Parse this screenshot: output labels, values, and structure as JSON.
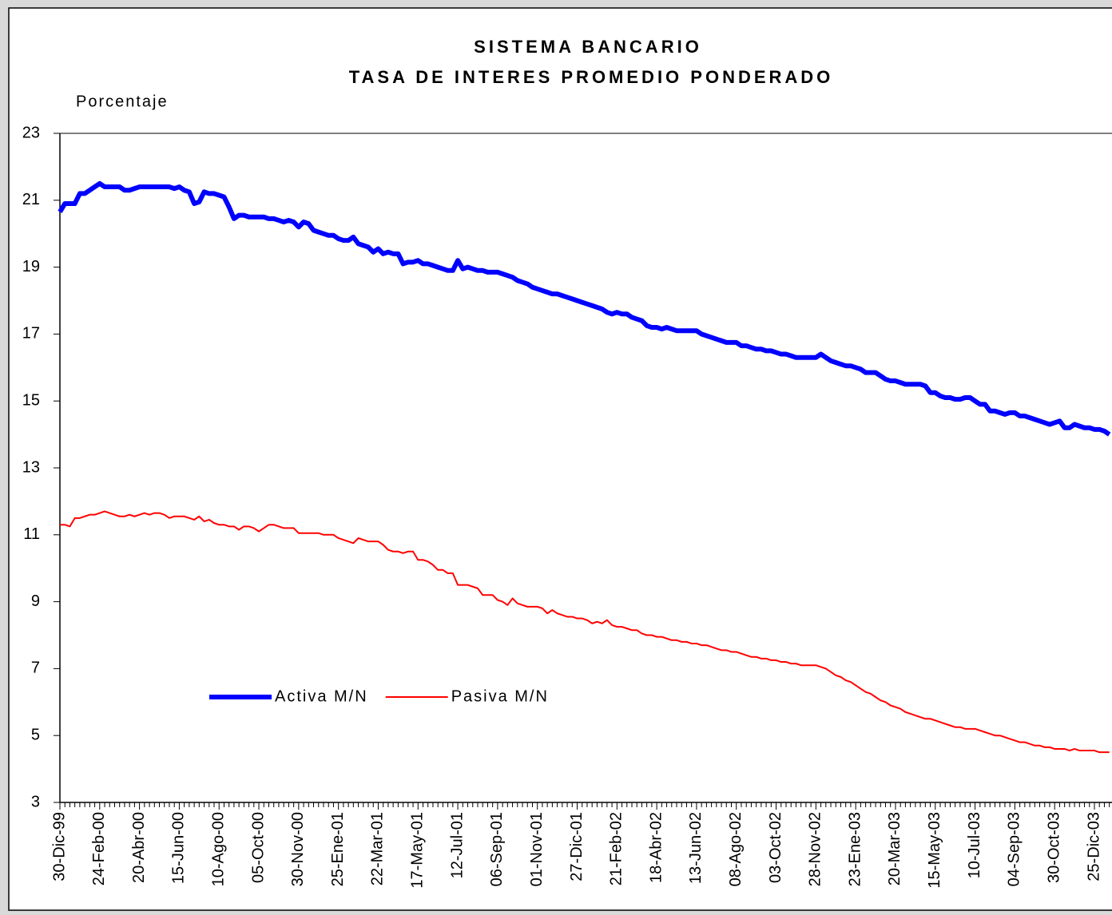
{
  "chart_data": {
    "type": "line",
    "title": "SISTEMA BANCARIO",
    "subtitle": "TASA DE INTERES PROMEDIO PONDERADO",
    "y_label": "Porcentaje",
    "ylim": [
      3,
      23
    ],
    "yticks": [
      3,
      5,
      7,
      9,
      11,
      13,
      15,
      17,
      19,
      21,
      23
    ],
    "grid": false,
    "legend": "center-left",
    "categories": [
      "30-Dic-99",
      null,
      null,
      null,
      null,
      null,
      null,
      null,
      "24-Feb-00",
      null,
      null,
      null,
      null,
      null,
      null,
      null,
      "20-Abr-00",
      null,
      null,
      null,
      null,
      null,
      null,
      null,
      "15-Jun-00",
      null,
      null,
      null,
      null,
      null,
      null,
      null,
      "10-Ago-00",
      null,
      null,
      null,
      null,
      null,
      null,
      null,
      "05-Oct-00",
      null,
      null,
      null,
      null,
      null,
      null,
      null,
      "30-Nov-00",
      null,
      null,
      null,
      null,
      null,
      null,
      null,
      "25-Ene-01",
      null,
      null,
      null,
      null,
      null,
      null,
      null,
      "22-Mar-01",
      null,
      null,
      null,
      null,
      null,
      null,
      null,
      "17-May-01",
      null,
      null,
      null,
      null,
      null,
      null,
      null,
      "12-Jul-01",
      null,
      null,
      null,
      null,
      null,
      null,
      null,
      "06-Sep-01",
      null,
      null,
      null,
      null,
      null,
      null,
      null,
      "01-Nov-01",
      null,
      null,
      null,
      null,
      null,
      null,
      null,
      "27-Dic-01",
      null,
      null,
      null,
      null,
      null,
      null,
      null,
      "21-Feb-02",
      null,
      null,
      null,
      null,
      null,
      null,
      null,
      "18-Abr-02",
      null,
      null,
      null,
      null,
      null,
      null,
      null,
      "13-Jun-02",
      null,
      null,
      null,
      null,
      null,
      null,
      null,
      "08-Ago-02",
      null,
      null,
      null,
      null,
      null,
      null,
      null,
      "03-Oct-02",
      null,
      null,
      null,
      null,
      null,
      null,
      null,
      "28-Nov-02",
      null,
      null,
      null,
      null,
      null,
      null,
      null,
      "23-Ene-03",
      null,
      null,
      null,
      null,
      null,
      null,
      null,
      "20-Mar-03",
      null,
      null,
      null,
      null,
      null,
      null,
      null,
      "15-May-03",
      null,
      null,
      null,
      null,
      null,
      null,
      null,
      "10-Jul-03",
      null,
      null,
      null,
      null,
      null,
      null,
      null,
      "04-Sep-03",
      null,
      null,
      null,
      null,
      null,
      null,
      null,
      "30-Oct-03",
      null,
      null,
      null,
      null,
      null,
      null,
      null,
      "25-Dic-03",
      null,
      null,
      null
    ],
    "series": [
      {
        "name": "Activa M/N",
        "color": "#0000ff",
        "values": [
          20.65,
          20.9,
          20.9,
          20.9,
          21.2,
          21.2,
          21.3,
          21.4,
          21.5,
          21.4,
          21.4,
          21.4,
          21.4,
          21.3,
          21.3,
          21.35,
          21.4,
          21.4,
          21.4,
          21.4,
          21.4,
          21.4,
          21.4,
          21.35,
          21.4,
          21.3,
          21.25,
          20.9,
          20.95,
          21.25,
          21.2,
          21.2,
          21.15,
          21.1,
          20.8,
          20.45,
          20.55,
          20.55,
          20.5,
          20.5,
          20.5,
          20.5,
          20.45,
          20.45,
          20.4,
          20.35,
          20.4,
          20.35,
          20.2,
          20.35,
          20.3,
          20.1,
          20.05,
          20.0,
          19.95,
          19.95,
          19.85,
          19.8,
          19.8,
          19.9,
          19.7,
          19.65,
          19.6,
          19.45,
          19.55,
          19.4,
          19.45,
          19.4,
          19.4,
          19.1,
          19.15,
          19.15,
          19.2,
          19.1,
          19.1,
          19.05,
          19.0,
          18.95,
          18.9,
          18.9,
          19.2,
          18.95,
          19.0,
          18.95,
          18.9,
          18.9,
          18.85,
          18.85,
          18.85,
          18.8,
          18.75,
          18.7,
          18.6,
          18.55,
          18.5,
          18.4,
          18.35,
          18.3,
          18.25,
          18.2,
          18.2,
          18.15,
          18.1,
          18.05,
          18.0,
          17.95,
          17.9,
          17.85,
          17.8,
          17.75,
          17.65,
          17.6,
          17.65,
          17.6,
          17.6,
          17.5,
          17.45,
          17.4,
          17.25,
          17.2,
          17.2,
          17.15,
          17.2,
          17.15,
          17.1,
          17.1,
          17.1,
          17.1,
          17.1,
          17.0,
          16.95,
          16.9,
          16.85,
          16.8,
          16.75,
          16.75,
          16.75,
          16.65,
          16.65,
          16.6,
          16.55,
          16.55,
          16.5,
          16.5,
          16.45,
          16.4,
          16.4,
          16.35,
          16.3,
          16.3,
          16.3,
          16.3,
          16.3,
          16.4,
          16.3,
          16.2,
          16.15,
          16.1,
          16.05,
          16.05,
          16.0,
          15.95,
          15.85,
          15.85,
          15.85,
          15.75,
          15.65,
          15.6,
          15.6,
          15.55,
          15.5,
          15.5,
          15.5,
          15.5,
          15.45,
          15.25,
          15.25,
          15.15,
          15.1,
          15.1,
          15.05,
          15.05,
          15.1,
          15.1,
          15.0,
          14.9,
          14.9,
          14.7,
          14.7,
          14.65,
          14.6,
          14.65,
          14.65,
          14.55,
          14.55,
          14.5,
          14.45,
          14.4,
          14.35,
          14.3,
          14.35,
          14.4,
          14.2,
          14.2,
          14.3,
          14.25,
          14.2,
          14.2,
          14.15,
          14.15,
          14.1,
          14.0
        ]
      },
      {
        "name": "Pasiva M/N",
        "color": "#ff0000",
        "values": [
          11.3,
          11.3,
          11.25,
          11.5,
          11.5,
          11.55,
          11.6,
          11.6,
          11.65,
          11.7,
          11.65,
          11.6,
          11.55,
          11.55,
          11.6,
          11.55,
          11.6,
          11.65,
          11.6,
          11.65,
          11.65,
          11.6,
          11.5,
          11.55,
          11.55,
          11.55,
          11.5,
          11.45,
          11.55,
          11.4,
          11.45,
          11.35,
          11.3,
          11.3,
          11.25,
          11.25,
          11.15,
          11.25,
          11.25,
          11.2,
          11.1,
          11.2,
          11.3,
          11.3,
          11.25,
          11.2,
          11.2,
          11.2,
          11.05,
          11.05,
          11.05,
          11.05,
          11.05,
          11.0,
          11.0,
          11.0,
          10.9,
          10.85,
          10.8,
          10.75,
          10.9,
          10.85,
          10.8,
          10.8,
          10.8,
          10.7,
          10.55,
          10.5,
          10.5,
          10.45,
          10.5,
          10.5,
          10.25,
          10.25,
          10.2,
          10.1,
          9.95,
          9.95,
          9.85,
          9.85,
          9.5,
          9.5,
          9.5,
          9.45,
          9.4,
          9.2,
          9.2,
          9.2,
          9.05,
          9.0,
          8.9,
          9.1,
          8.95,
          8.9,
          8.85,
          8.85,
          8.85,
          8.8,
          8.65,
          8.75,
          8.65,
          8.6,
          8.55,
          8.55,
          8.5,
          8.5,
          8.45,
          8.35,
          8.4,
          8.35,
          8.45,
          8.3,
          8.25,
          8.25,
          8.2,
          8.15,
          8.15,
          8.05,
          8.0,
          8.0,
          7.95,
          7.95,
          7.9,
          7.85,
          7.85,
          7.8,
          7.8,
          7.75,
          7.75,
          7.7,
          7.7,
          7.65,
          7.6,
          7.55,
          7.55,
          7.5,
          7.5,
          7.45,
          7.4,
          7.35,
          7.35,
          7.3,
          7.3,
          7.25,
          7.25,
          7.2,
          7.2,
          7.15,
          7.15,
          7.1,
          7.1,
          7.1,
          7.1,
          7.05,
          7.0,
          6.9,
          6.8,
          6.75,
          6.65,
          6.6,
          6.5,
          6.4,
          6.3,
          6.25,
          6.15,
          6.05,
          6.0,
          5.9,
          5.85,
          5.8,
          5.7,
          5.65,
          5.6,
          5.55,
          5.5,
          5.5,
          5.45,
          5.4,
          5.35,
          5.3,
          5.25,
          5.25,
          5.2,
          5.2,
          5.2,
          5.15,
          5.1,
          5.05,
          5.0,
          5.0,
          4.95,
          4.9,
          4.85,
          4.8,
          4.8,
          4.75,
          4.7,
          4.7,
          4.65,
          4.65,
          4.6,
          4.6,
          4.6,
          4.55,
          4.6,
          4.55,
          4.55,
          4.55,
          4.55,
          4.5,
          4.5,
          4.5
        ]
      }
    ]
  }
}
